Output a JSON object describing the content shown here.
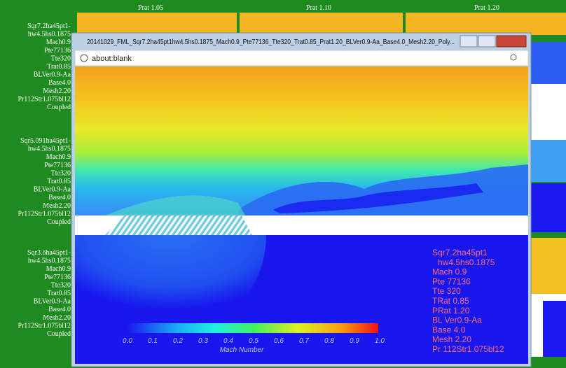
{
  "header": {
    "columns": [
      "Prat 1.05",
      "Prat 1.10",
      "Prat 1.20"
    ]
  },
  "sidebar": {
    "groups": [
      [
        "Sqr7.2ha45pt1-",
        "hw4.5hs0.1875",
        "Mach0.9",
        "Pte77136",
        "Tte320",
        "Trat0.85",
        "BLVer0.9-Aa",
        "Base4.0",
        "Mesh2.20",
        "Pr112Str1.075bl12",
        "Coupled"
      ],
      [
        "Sqr5.091ha45pt1-",
        "hw4.5hs0.1875",
        "Mach0.9",
        "Pte77136",
        "Tte320",
        "Trat0.85",
        "BLVer0.9-Aa",
        "Base4.0",
        "Mesh2.20",
        "Pr112Str1.075bl12",
        "Coupled"
      ],
      [
        "Sqr3.6ha45pt1-",
        "hw4.5hs0.1875",
        "Mach0.9",
        "Pte77136",
        "Tte320",
        "Trat0.85",
        "BLVer0.9-Aa",
        "Base4.0",
        "Mesh2.20",
        "Pr112Str1.075bl12",
        "Coupled"
      ]
    ]
  },
  "window": {
    "title": "20141029_FML_Sqr7.2ha45pt1hw4.5hs0.1875_Mach0.9_Pte77136_Tte320_Trat0.85_Prat1.20_BLVer0.9-Aa_Base4.0_Mesh2.20_Poly...",
    "address": "about:blank"
  },
  "plot": {
    "colorbar": {
      "ticks": [
        "0.0",
        "0.1",
        "0.2",
        "0.3",
        "0.4",
        "0.5",
        "0.6",
        "0.7",
        "0.8",
        "0.9",
        "1.0"
      ],
      "label": "Mach Number"
    },
    "annotation": [
      "Sqr7.2ha45pt1",
      "hw4.5hs0.1875",
      "Mach 0.9",
      "Pte 77136",
      "Tte 320",
      "TRat 0.85",
      "PRat 1.20",
      "BL Ver0.9-Aa",
      "Base 4.0",
      "Mesh 2.20",
      "Pr 112Str1.075bl12"
    ]
  }
}
